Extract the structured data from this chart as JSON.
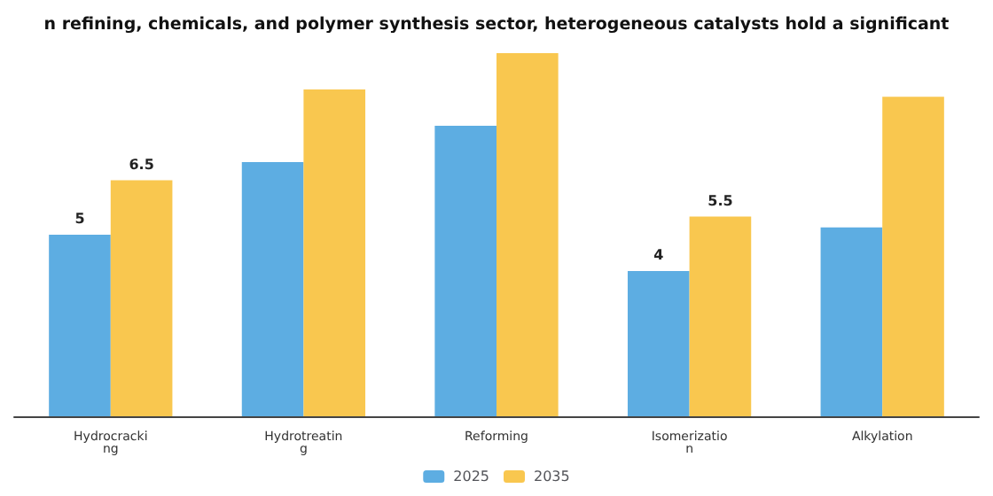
{
  "chart_data": {
    "type": "bar",
    "title": "n refining, chemicals, and polymer synthesis sector, heterogeneous catalysts hold a significant",
    "categories": [
      "Hydrocracking",
      "Hydrotreating",
      "Reforming",
      "Isomerization",
      "Alkylation"
    ],
    "series": [
      {
        "name": "2025",
        "color": "#5dade2",
        "values": [
          5,
          7,
          8,
          4,
          5.2
        ],
        "value_labels": [
          "5",
          null,
          null,
          "4",
          null
        ]
      },
      {
        "name": "2035",
        "color": "#f9c74f",
        "values": [
          6.5,
          9,
          10,
          5.5,
          8.8
        ],
        "value_labels": [
          "6.5",
          null,
          null,
          "5.5",
          null
        ]
      }
    ],
    "tick_labels": "x",
    "legend": "bottom"
  }
}
